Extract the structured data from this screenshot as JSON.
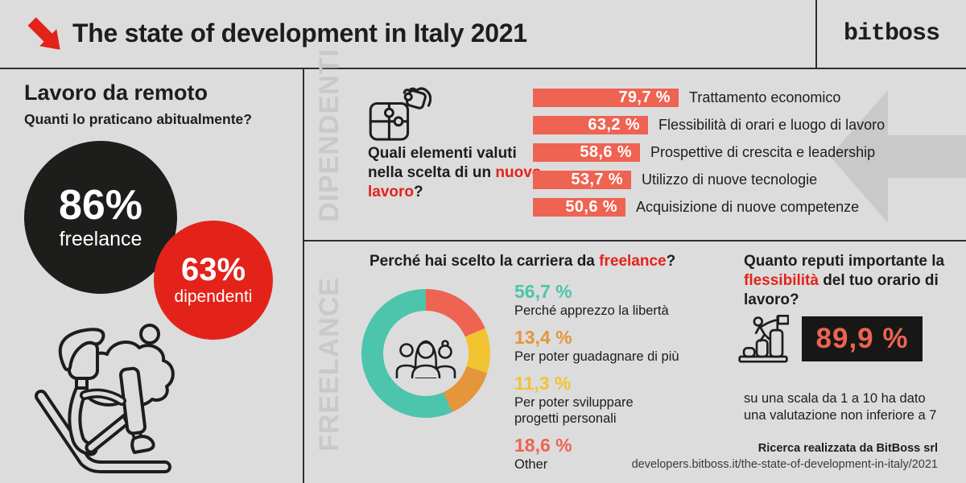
{
  "header": {
    "title": "The state of development in Italy 2021",
    "logo": "bitboss"
  },
  "colors": {
    "background": "#dcdcdc",
    "accent_red": "#e3231a",
    "salmon": "#ee6352",
    "teal": "#4dc4ac",
    "yellow": "#f2c431",
    "orange": "#e5953a",
    "black": "#1d1d1b",
    "watermark_gray": "#c9c9c9"
  },
  "remote": {
    "title": "Lavoro da remoto",
    "subtitle": "Quanti lo praticano abitualmente?",
    "freelance_value": "86%",
    "freelance_label": "freelance",
    "dipendenti_value": "63%",
    "dipendenti_label": "dipendenti"
  },
  "dipendenti_section": {
    "watermark": "DIPENDENTI",
    "question_prefix": "Quali elementi valuti nella scelta di un ",
    "question_highlight": "nuovo lavoro",
    "question_suffix": "?"
  },
  "freelance_section": {
    "watermark": "FREELANCE",
    "question_prefix": "Perché hai scelto la carriera da ",
    "question_highlight": "freelance",
    "question_suffix": "?",
    "flex_question_prefix": "Quanto reputi importante la ",
    "flex_question_highlight": "flessibilità",
    "flex_question_suffix": " del tuo orario di lavoro?",
    "stat_value": "89,9 %",
    "caption_line1": "su una scala da 1 a 10 ha dato",
    "caption_line2": "una valutazione non inferiore a 7"
  },
  "footer": {
    "credit": "Ricerca realizzata da BitBoss srl",
    "url": "developers.bitboss.it/the-state-of-development-in-italy/2021"
  },
  "chart_data": [
    {
      "type": "bar",
      "orientation": "horizontal",
      "audience": "DIPENDENTI",
      "title": "Quali elementi valuti nella scelta di un nuovo lavoro?",
      "categories": [
        "Trattamento economico",
        "Flessibilità di orari e luogo di lavoro",
        "Prospettive di crescita e leadership",
        "Utilizzo di nuove tecnologie",
        "Acquisizione di nuove competenze"
      ],
      "values": [
        79.7,
        63.2,
        58.6,
        53.7,
        50.6
      ],
      "value_labels": [
        "79,7 %",
        "63,2 %",
        "58,6 %",
        "53,7 %",
        "50,6 %"
      ],
      "bar_color": "#ee6352",
      "xlim": [
        0,
        100
      ],
      "grid": false
    },
    {
      "type": "pie",
      "subtype": "donut",
      "audience": "FREELANCE",
      "title": "Perché hai scelto la carriera da freelance?",
      "slices_clockwise_from_top": [
        {
          "value": 18.6,
          "value_label": "18,6 %",
          "label": "Other",
          "color": "#ee6352"
        },
        {
          "value": 11.3,
          "value_label": "11,3 %",
          "label": "Per poter sviluppare progetti personali",
          "color": "#f2c431"
        },
        {
          "value": 13.4,
          "value_label": "13,4 %",
          "label": "Per poter guadagnare di più",
          "color": "#e5953a"
        },
        {
          "value": 56.7,
          "value_label": "56,7 %",
          "label": "Perché apprezzo la libertà",
          "color": "#4dc4ac"
        }
      ],
      "legend_position": "right",
      "legend": [
        {
          "value_label": "56,7 %",
          "color": "#4dc4ac",
          "lines": [
            "Perché apprezzo la libertà"
          ]
        },
        {
          "value_label": "13,4 %",
          "color": "#e5953a",
          "lines": [
            "Per poter guadagnare di più"
          ]
        },
        {
          "value_label": "11,3 %",
          "color": "#f2c431",
          "lines": [
            "Per poter sviluppare",
            "progetti personali"
          ]
        },
        {
          "value_label": "18,6 %",
          "color": "#ee6352",
          "lines": [
            "Other"
          ]
        }
      ]
    },
    {
      "type": "table",
      "audience": "FREELANCE",
      "title": "Quanto reputi importante la flessibilità del tuo orario di lavoro?",
      "values": [
        89.9
      ],
      "value_labels": [
        "89,9 %"
      ],
      "note": "su una scala da 1 a 10 ha dato una valutazione non inferiore a 7"
    },
    {
      "type": "pie",
      "subtype": "circles",
      "title": "Lavoro da remoto — Quanti lo praticano abitualmente?",
      "labels": [
        "freelance",
        "dipendenti"
      ],
      "values": [
        86,
        63
      ],
      "value_labels": [
        "86%",
        "63%"
      ],
      "colors": [
        "#1d1d1b",
        "#e3231a"
      ]
    }
  ]
}
